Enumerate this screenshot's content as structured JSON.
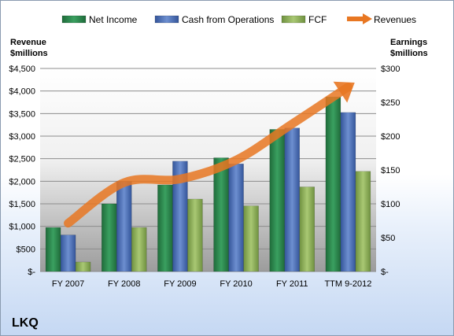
{
  "chart_data": {
    "type": "bar",
    "title": "LKQ",
    "categories": [
      "FY 2007",
      "FY 2008",
      "FY 2009",
      "FY 2010",
      "FY 2011",
      "TTM 9-2012"
    ],
    "left_axis": {
      "label_line1": "Revenue",
      "label_line2": "$millions",
      "ylim": [
        0,
        4500
      ],
      "ticks": [
        0,
        500,
        1000,
        1500,
        2000,
        2500,
        3000,
        3500,
        4000,
        4500
      ],
      "tick_labels": [
        "$-",
        "$500",
        "$1,000",
        "$1,500",
        "$2,000",
        "$2,500",
        "$3,000",
        "$3,500",
        "$4,000",
        "$4,500"
      ]
    },
    "right_axis": {
      "label_line1": "Earnings",
      "label_line2": "$millions",
      "ylim": [
        0,
        300
      ],
      "ticks": [
        0,
        50,
        100,
        150,
        200,
        250,
        300
      ],
      "tick_labels": [
        "$-",
        "$50",
        "$100",
        "$150",
        "$200",
        "$250",
        "$300"
      ]
    },
    "series": [
      {
        "name": "Net Income",
        "type": "bar",
        "axis": "right",
        "color": "#2e8b4e",
        "values": [
          65,
          100,
          128,
          168,
          210,
          258
        ]
      },
      {
        "name": "Cash from Operations",
        "type": "bar",
        "axis": "right",
        "color": "#4f73b8",
        "values": [
          54,
          133,
          163,
          159,
          212,
          235
        ]
      },
      {
        "name": "FCF",
        "type": "bar",
        "axis": "right",
        "color": "#8fb35a",
        "values": [
          14,
          65,
          107,
          97,
          125,
          148
        ]
      },
      {
        "name": "Revenues",
        "type": "line",
        "axis": "left",
        "color": "#e87722",
        "values": [
          1070,
          1970,
          2050,
          2470,
          3270,
          4090
        ]
      }
    ],
    "legend_position": "top",
    "grid": true
  }
}
